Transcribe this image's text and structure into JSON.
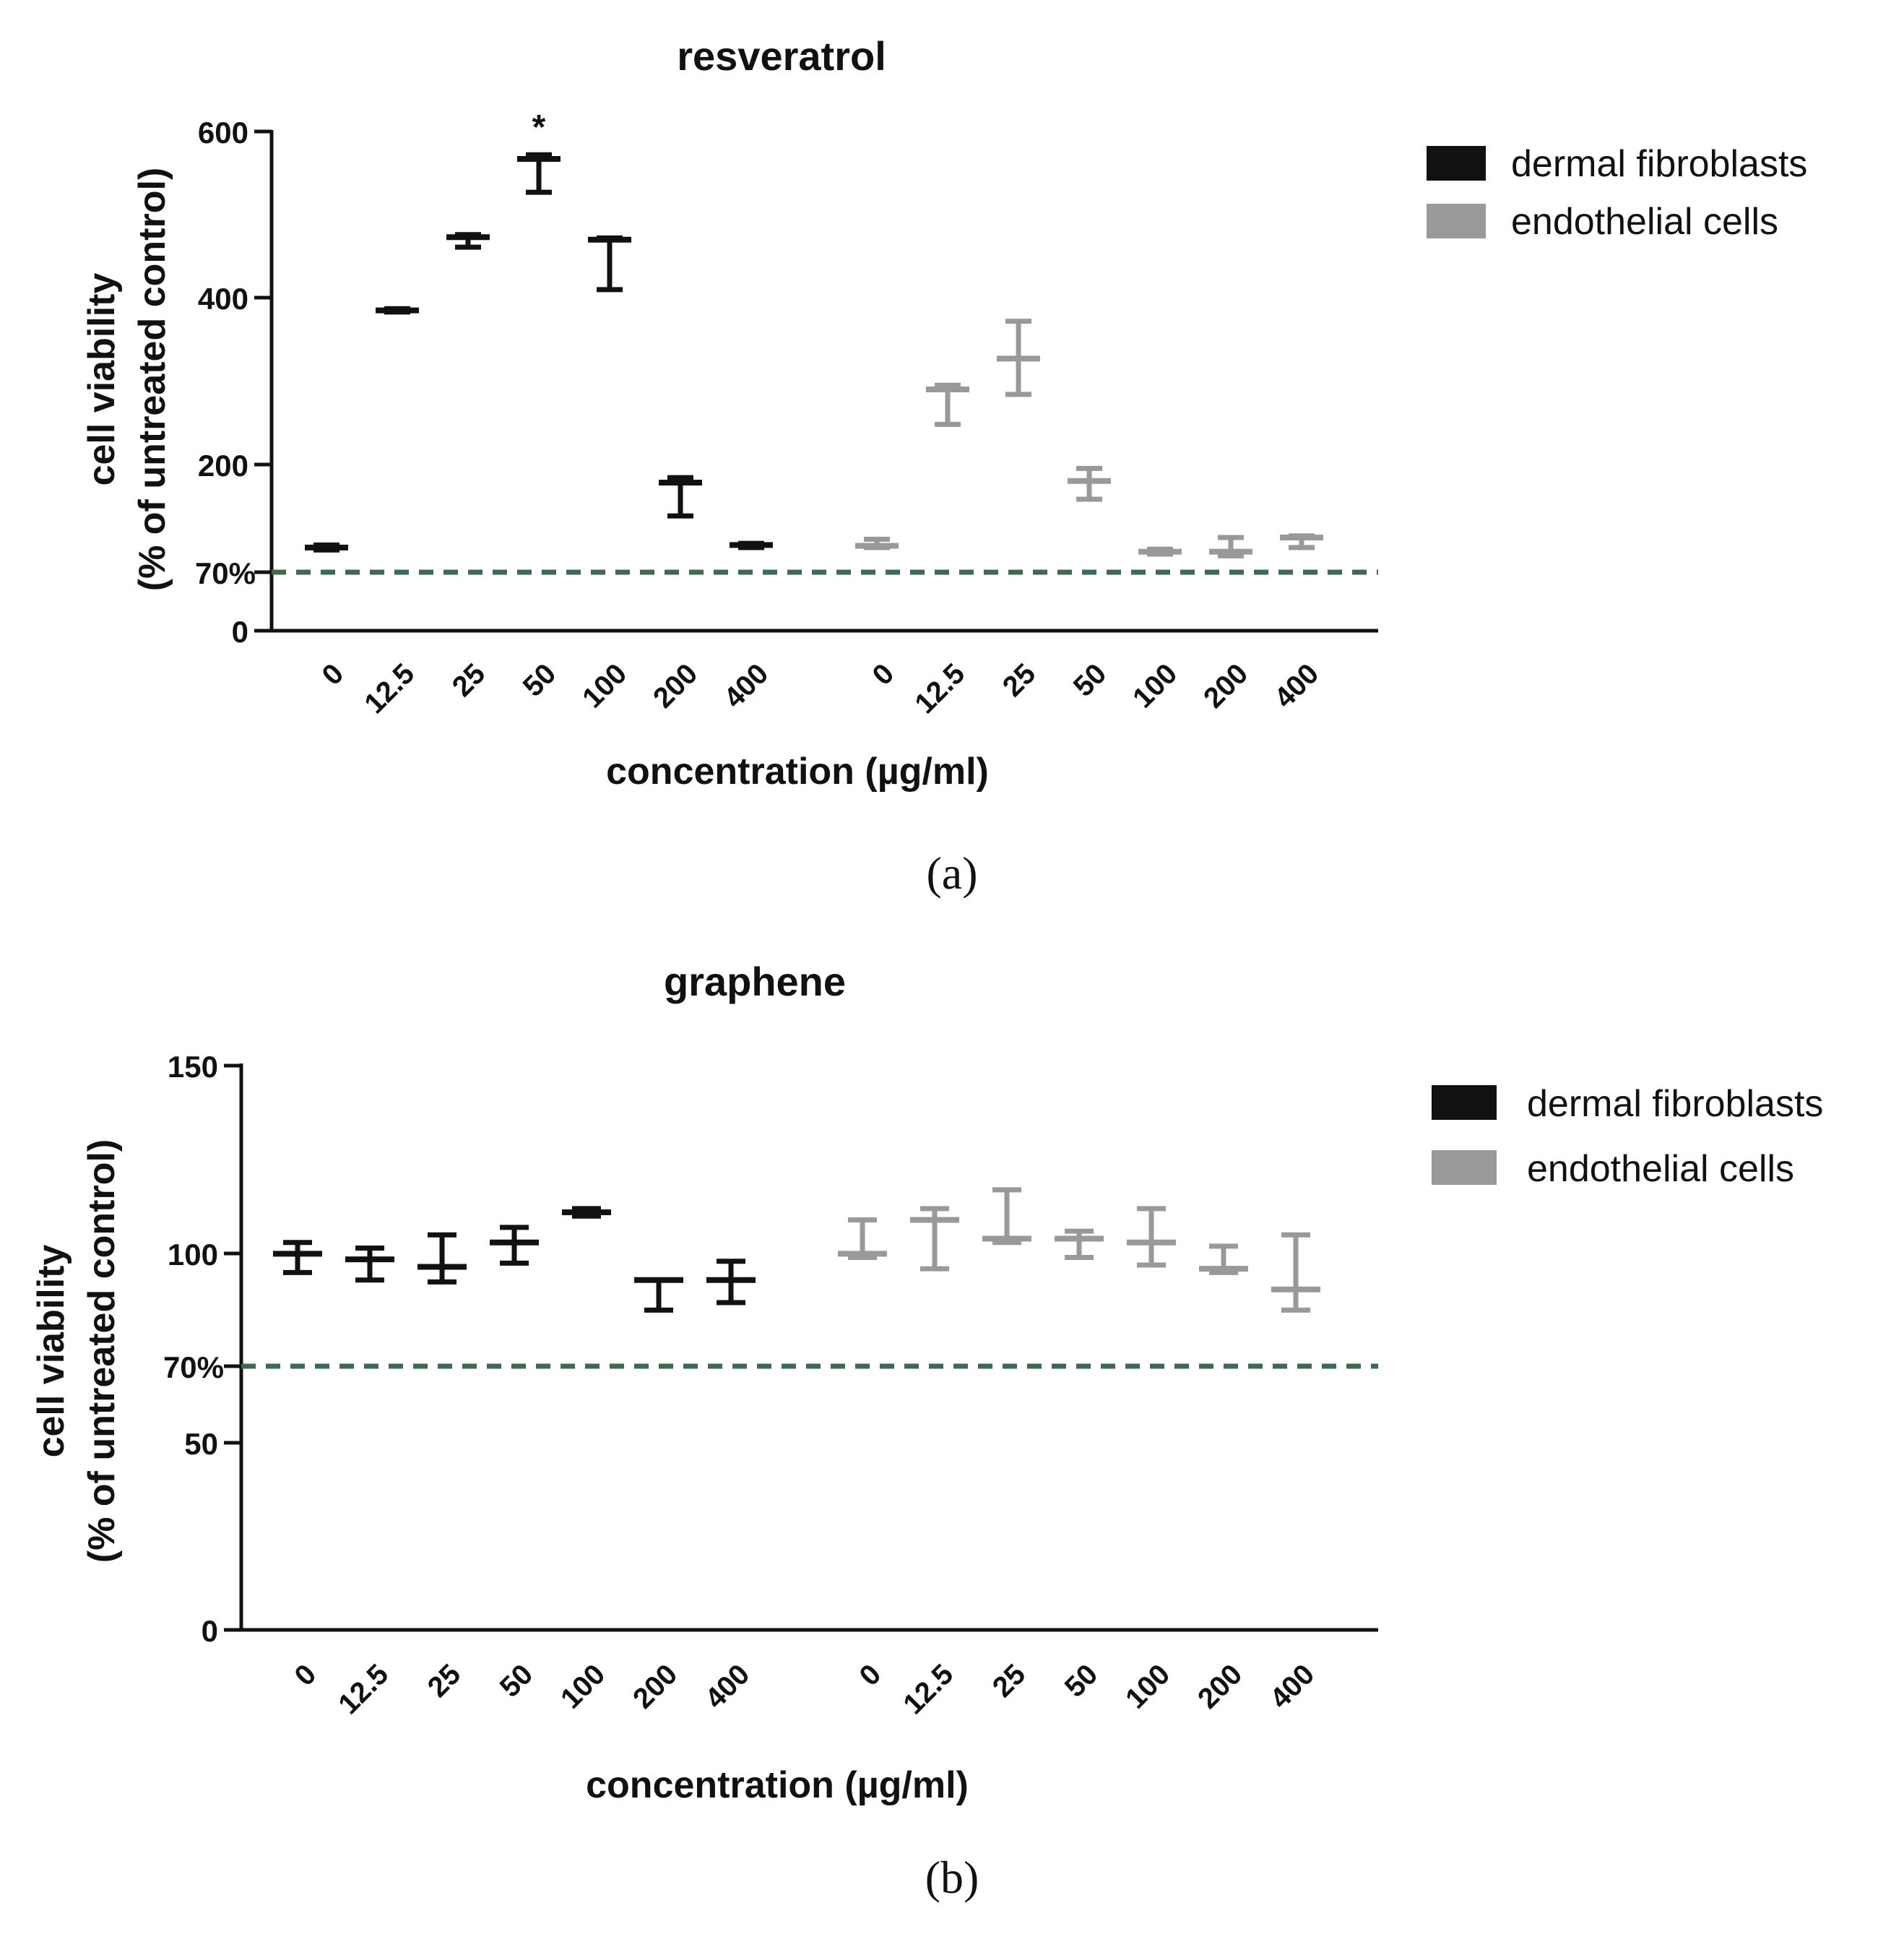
{
  "chart_data": [
    {
      "type": "scatter",
      "panel": "a",
      "caption": "(a)",
      "title": "resveratrol",
      "xlabel": "concentration (µg/ml)",
      "ylabel_line1": "cell viability",
      "ylabel_line2": "(% of untreated control)",
      "ylim": [
        0,
        600
      ],
      "yticks": [
        "0",
        "200",
        "400",
        "600"
      ],
      "yticks_values": [
        0,
        200,
        400,
        600
      ],
      "threshold": {
        "value": 70,
        "label": "70%",
        "color": "#3d6b52"
      },
      "categories": [
        "0",
        "12.5",
        "25",
        "50",
        "100",
        "200",
        "400"
      ],
      "legend": [
        "dermal fibroblasts",
        "endothelial cells"
      ],
      "series": [
        {
          "name": "dermal fibroblasts",
          "color": "#111111",
          "mean": [
            100,
            385,
            473,
            567,
            470,
            178,
            103
          ],
          "upper": [
            103,
            387,
            476,
            572,
            472,
            184,
            105
          ],
          "lower": [
            97,
            383,
            461,
            527,
            410,
            138,
            100
          ]
        },
        {
          "name": "endothelial cells",
          "color": "#999999",
          "mean": [
            102,
            290,
            327,
            180,
            95,
            95,
            112
          ],
          "upper": [
            110,
            295,
            372,
            195,
            98,
            112,
            114
          ],
          "lower": [
            100,
            248,
            284,
            158,
            92,
            90,
            100
          ]
        }
      ],
      "annotations": [
        {
          "text": "*",
          "series": 0,
          "category": "50"
        }
      ]
    },
    {
      "type": "scatter",
      "panel": "b",
      "caption": "(b)",
      "title": "graphene",
      "xlabel": "concentration (µg/ml)",
      "ylabel_line1": "cell viability",
      "ylabel_line2": "(% of untreated control)",
      "ylim": [
        0,
        150
      ],
      "yticks": [
        "0",
        "50",
        "100",
        "150"
      ],
      "yticks_values": [
        0,
        50,
        100,
        150
      ],
      "threshold": {
        "value": 70,
        "label": "70%",
        "color": "#3d6b52"
      },
      "categories": [
        "0",
        "12.5",
        "25",
        "50",
        "100",
        "200",
        "400"
      ],
      "legend": [
        "dermal fibroblasts",
        "endothelial cells"
      ],
      "series": [
        {
          "name": "dermal fibroblasts",
          "color": "#111111",
          "mean": [
            100,
            98.5,
            96.5,
            103,
            111,
            93,
            93
          ],
          "upper": [
            103,
            101.5,
            105,
            107,
            112,
            93,
            98
          ],
          "lower": [
            95,
            93,
            92.5,
            97.5,
            110,
            85,
            87
          ]
        },
        {
          "name": "endothelial cells",
          "color": "#999999",
          "mean": [
            100,
            109,
            104,
            104,
            103,
            96,
            90.5
          ],
          "upper": [
            109,
            112,
            117,
            106,
            112,
            102,
            105
          ],
          "lower": [
            99,
            96,
            103,
            99,
            97,
            95,
            85
          ]
        }
      ],
      "annotations": []
    }
  ]
}
